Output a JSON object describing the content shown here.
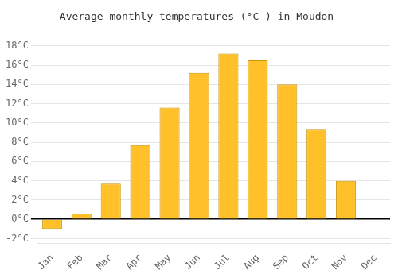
{
  "chart_data": {
    "type": "bar",
    "title": "Average monthly temperatures (°C ) in Moudon",
    "categories": [
      "Jan",
      "Feb",
      "Mar",
      "Apr",
      "May",
      "Jun",
      "Jul",
      "Aug",
      "Sep",
      "Oct",
      "Nov",
      "Dec"
    ],
    "values": [
      -1.0,
      0.6,
      3.7,
      7.7,
      11.6,
      15.2,
      17.2,
      16.5,
      14.0,
      9.3,
      4.0,
      0.0
    ],
    "color": "#FFC02A",
    "ylim": [
      -2.5,
      19.5
    ],
    "yticks": [
      {
        "value": -2,
        "label": "-2°C"
      },
      {
        "value": 0,
        "label": "0°C"
      },
      {
        "value": 2,
        "label": "2°C"
      },
      {
        "value": 4,
        "label": "4°C"
      },
      {
        "value": 6,
        "label": "6°C"
      },
      {
        "value": 8,
        "label": "8°C"
      },
      {
        "value": 10,
        "label": "10°C"
      },
      {
        "value": 12,
        "label": "12°C"
      },
      {
        "value": 14,
        "label": "14°C"
      },
      {
        "value": 16,
        "label": "16°C"
      },
      {
        "value": 18,
        "label": "18°C"
      }
    ],
    "grid": true
  }
}
